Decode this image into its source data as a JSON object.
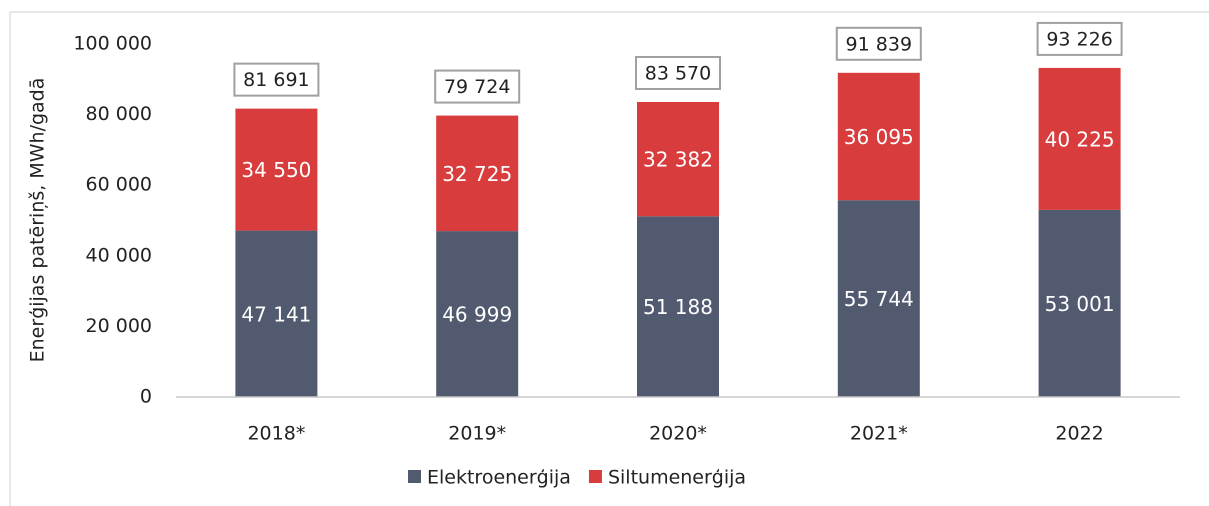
{
  "chart_data": {
    "type": "stacked_bar",
    "y_axis_label": "Enerģijas patēriņš, MWh/gadā",
    "categories": [
      "2018*",
      "2019*",
      "2020*",
      "2021*",
      "2022"
    ],
    "series": [
      {
        "name": "Elektroenerģija",
        "color": "#525a70",
        "values": [
          47141,
          46999,
          51188,
          55744,
          53001
        ],
        "value_labels": [
          "47 141",
          "46 999",
          "51 188",
          "55 744",
          "53 001"
        ]
      },
      {
        "name": "Siltumenerģija",
        "color": "#d93c3c",
        "values": [
          34550,
          32725,
          32382,
          36095,
          40225
        ],
        "value_labels": [
          "34 550",
          "32 725",
          "32 382",
          "36 095",
          "40 225"
        ]
      }
    ],
    "totals": [
      81691,
      79724,
      83570,
      91839,
      93226
    ],
    "total_labels": [
      "81 691",
      "79 724",
      "83 570",
      "91 839",
      "93 226"
    ],
    "ylim": [
      0,
      100000
    ],
    "yticks": [
      0,
      {
        "value": 20000,
        "label": "20 000"
      },
      {
        "value": 40000,
        "label": "40 000"
      },
      {
        "value": 60000,
        "label": "60 000"
      },
      {
        "value": 80000,
        "label": "80 000"
      },
      {
        "value": 100000,
        "label": "100 000"
      }
    ],
    "grid": false,
    "legend": "bottom"
  }
}
